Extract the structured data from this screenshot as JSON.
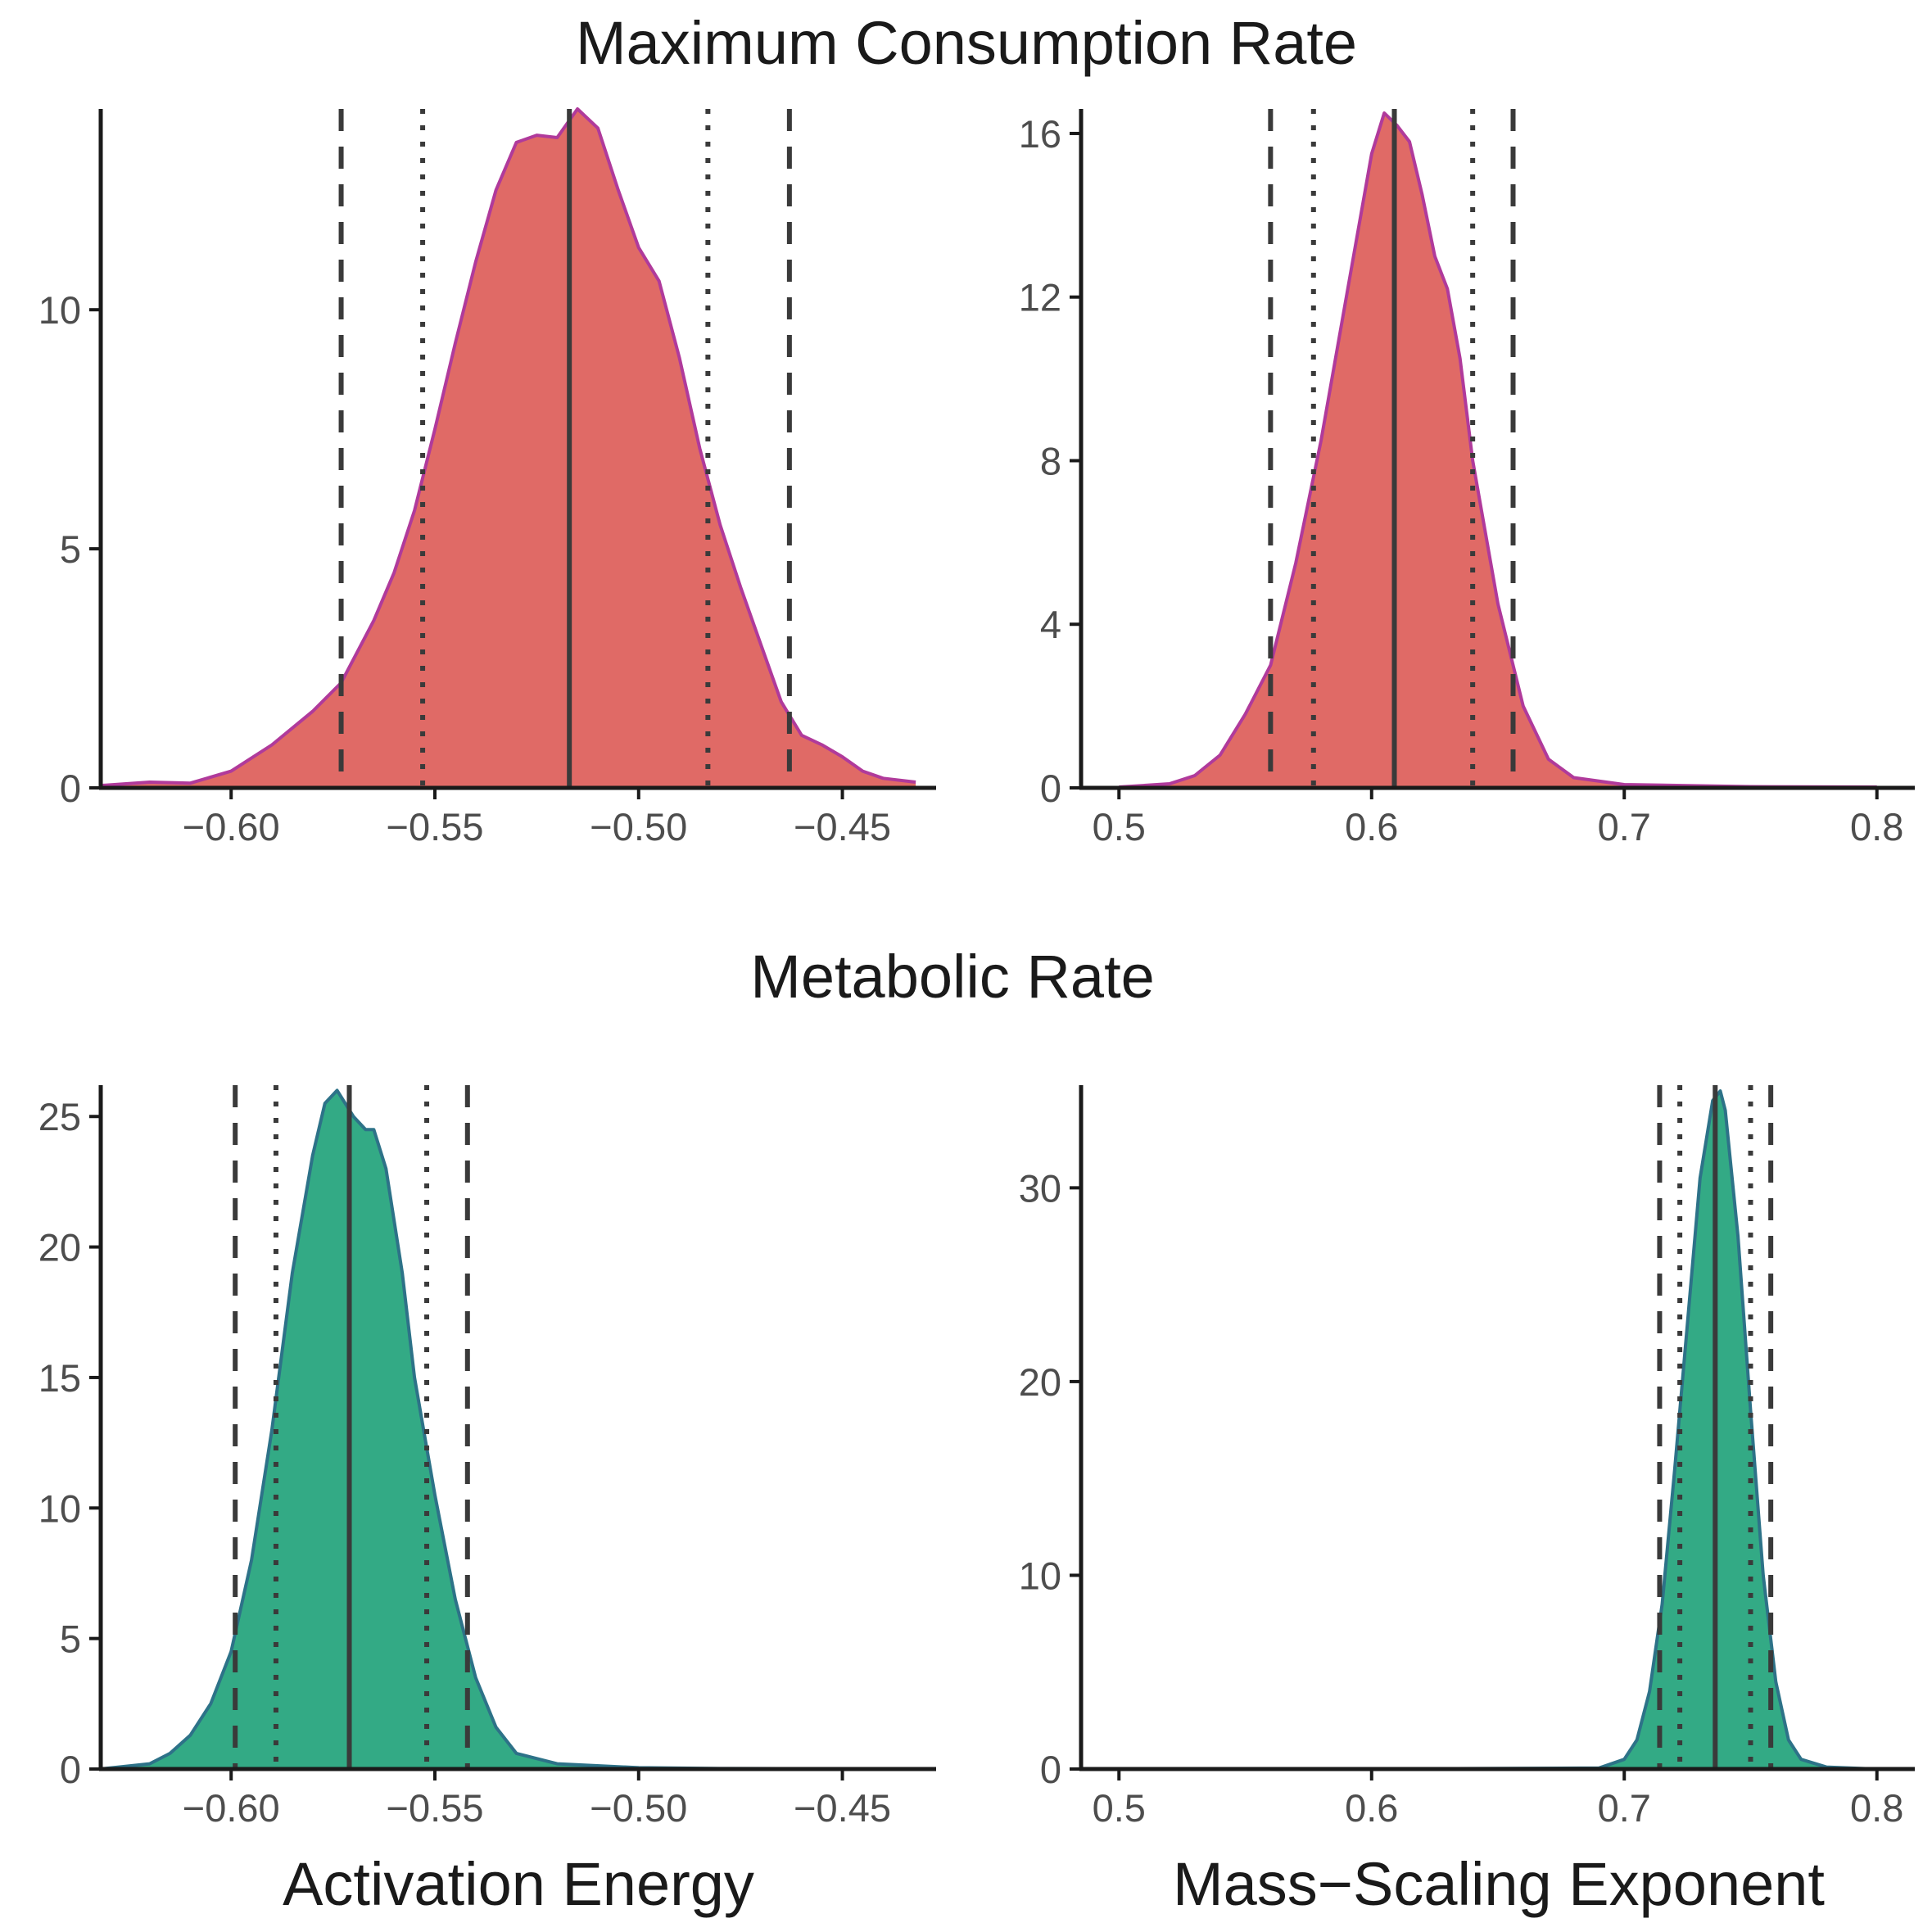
{
  "titles": {
    "top": "Maximum Consumption Rate",
    "bottom": "Metabolic Rate"
  },
  "xlabels": {
    "left": "Activation Energy",
    "right": "Mass−Scaling Exponent"
  },
  "colors": {
    "consumption_fill": "#E06A66",
    "consumption_line": "#B03A9B",
    "metabolic_fill": "#33AA85",
    "metabolic_line": "#2D7288",
    "reference_lines": "#3a3a3a",
    "axis": "#1a1a1a",
    "tick_text": "#4d4d4d"
  },
  "chart_data": [
    {
      "type": "area",
      "row": "Maximum Consumption Rate",
      "variable": "Activation Energy",
      "xlim": [
        -0.632,
        -0.427
      ],
      "ylim": [
        0,
        14.2
      ],
      "xticks": [
        -0.6,
        -0.55,
        -0.5,
        -0.45
      ],
      "xtick_labels": [
        "−0.60",
        "−0.55",
        "−0.50",
        "−0.45"
      ],
      "yticks": [
        0,
        5,
        10
      ],
      "ytick_labels": [
        "0",
        "5",
        "10"
      ],
      "grid": false,
      "median": -0.517,
      "inner_interval": [
        -0.553,
        -0.483
      ],
      "outer_interval": [
        -0.573,
        -0.463
      ],
      "density": {
        "x": [
          -0.632,
          -0.62,
          -0.61,
          -0.6,
          -0.59,
          -0.58,
          -0.573,
          -0.565,
          -0.56,
          -0.555,
          -0.55,
          -0.545,
          -0.54,
          -0.535,
          -0.53,
          -0.525,
          -0.52,
          -0.515,
          -0.51,
          -0.505,
          -0.5,
          -0.495,
          -0.49,
          -0.485,
          -0.48,
          -0.475,
          -0.47,
          -0.465,
          -0.46,
          -0.455,
          -0.45,
          -0.445,
          -0.44,
          -0.432
        ],
        "y": [
          0.05,
          0.12,
          0.1,
          0.35,
          0.9,
          1.6,
          2.2,
          3.5,
          4.5,
          5.8,
          7.5,
          9.3,
          11.0,
          12.5,
          13.5,
          13.65,
          13.6,
          14.2,
          13.8,
          12.5,
          11.3,
          10.6,
          9.0,
          7.1,
          5.5,
          4.2,
          3.0,
          1.8,
          1.1,
          0.9,
          0.65,
          0.35,
          0.2,
          0.12
        ]
      }
    },
    {
      "type": "area",
      "row": "Maximum Consumption Rate",
      "variable": "Mass−Scaling Exponent",
      "xlim": [
        0.485,
        0.815
      ],
      "ylim": [
        0,
        16.6
      ],
      "xticks": [
        0.5,
        0.6,
        0.7,
        0.8
      ],
      "xtick_labels": [
        "0.5",
        "0.6",
        "0.7",
        "0.8"
      ],
      "yticks": [
        0,
        4,
        8,
        12,
        16
      ],
      "ytick_labels": [
        "0",
        "4",
        "8",
        "12",
        "16"
      ],
      "grid": false,
      "median": 0.609,
      "inner_interval": [
        0.577,
        0.64
      ],
      "outer_interval": [
        0.56,
        0.656
      ],
      "density": {
        "x": [
          0.5,
          0.52,
          0.53,
          0.54,
          0.55,
          0.56,
          0.57,
          0.58,
          0.59,
          0.6,
          0.605,
          0.61,
          0.615,
          0.62,
          0.625,
          0.63,
          0.635,
          0.64,
          0.65,
          0.66,
          0.67,
          0.68,
          0.7,
          0.75,
          0.8
        ],
        "y": [
          0.02,
          0.1,
          0.3,
          0.8,
          1.8,
          3.0,
          5.5,
          8.5,
          12.0,
          15.5,
          16.5,
          16.2,
          15.8,
          14.5,
          13.0,
          12.2,
          10.5,
          8.0,
          4.5,
          2.0,
          0.7,
          0.25,
          0.08,
          0.03,
          0.02
        ]
      }
    },
    {
      "type": "area",
      "row": "Metabolic Rate",
      "variable": "Activation Energy",
      "xlim": [
        -0.632,
        -0.427
      ],
      "ylim": [
        0,
        26.2
      ],
      "xticks": [
        -0.6,
        -0.55,
        -0.5,
        -0.45
      ],
      "xtick_labels": [
        "−0.60",
        "−0.55",
        "−0.50",
        "−0.45"
      ],
      "yticks": [
        0,
        5,
        10,
        15,
        20,
        25
      ],
      "ytick_labels": [
        "0",
        "5",
        "10",
        "15",
        "20",
        "25"
      ],
      "grid": false,
      "median": -0.571,
      "inner_interval": [
        -0.589,
        -0.552
      ],
      "outer_interval": [
        -0.599,
        -0.542
      ],
      "density": {
        "x": [
          -0.632,
          -0.62,
          -0.615,
          -0.61,
          -0.605,
          -0.6,
          -0.595,
          -0.59,
          -0.585,
          -0.58,
          -0.577,
          -0.574,
          -0.57,
          -0.567,
          -0.565,
          -0.562,
          -0.558,
          -0.555,
          -0.55,
          -0.545,
          -0.54,
          -0.535,
          -0.53,
          -0.52,
          -0.5,
          -0.48,
          -0.45,
          -0.432
        ],
        "y": [
          0.0,
          0.2,
          0.6,
          1.3,
          2.5,
          4.5,
          8.0,
          13.0,
          19.0,
          23.5,
          25.5,
          26.0,
          25.0,
          24.5,
          24.5,
          23.0,
          19.0,
          15.0,
          10.5,
          6.5,
          3.5,
          1.6,
          0.6,
          0.2,
          0.05,
          0.02,
          0.01,
          0.0
        ]
      }
    },
    {
      "type": "area",
      "row": "Metabolic Rate",
      "variable": "Mass−Scaling Exponent",
      "xlim": [
        0.485,
        0.815
      ],
      "ylim": [
        0,
        35.3
      ],
      "xticks": [
        0.5,
        0.6,
        0.7,
        0.8
      ],
      "xtick_labels": [
        "0.5",
        "0.6",
        "0.7",
        "0.8"
      ],
      "yticks": [
        0,
        10,
        20,
        30
      ],
      "ytick_labels": [
        "0",
        "10",
        "20",
        "30"
      ],
      "grid": false,
      "median": 0.736,
      "inner_interval": [
        0.722,
        0.75
      ],
      "outer_interval": [
        0.714,
        0.758
      ],
      "density": {
        "x": [
          0.5,
          0.6,
          0.69,
          0.7,
          0.705,
          0.71,
          0.715,
          0.72,
          0.725,
          0.73,
          0.735,
          0.738,
          0.74,
          0.745,
          0.75,
          0.755,
          0.76,
          0.765,
          0.77,
          0.78,
          0.8
        ],
        "y": [
          0.0,
          0.0,
          0.05,
          0.5,
          1.5,
          4.0,
          8.5,
          15.5,
          23.0,
          30.5,
          34.5,
          35.0,
          34.0,
          27.5,
          18.5,
          10.0,
          4.5,
          1.5,
          0.5,
          0.1,
          0.0
        ]
      }
    }
  ]
}
